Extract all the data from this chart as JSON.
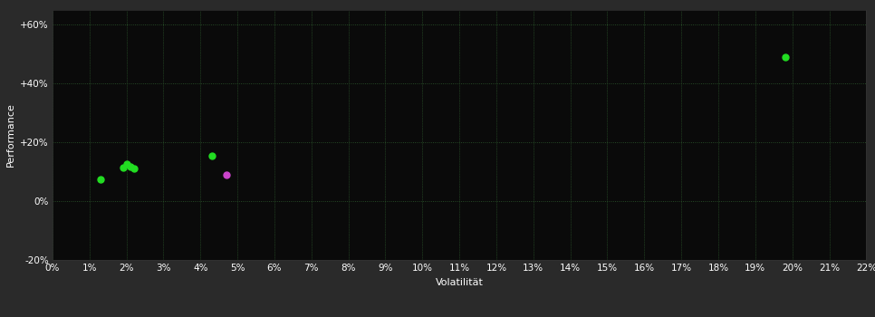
{
  "background_color": "#2a2a2a",
  "plot_bg_color": "#0a0a0a",
  "grid_color": "#2d5a2d",
  "grid_style": ":",
  "xlabel": "Volatilität",
  "ylabel": "Performance",
  "xlim": [
    0,
    0.22
  ],
  "ylim": [
    -0.2,
    0.65
  ],
  "ytick_vals": [
    -0.2,
    0.0,
    0.2,
    0.4,
    0.6
  ],
  "ytick_labels": [
    "-20%",
    "0%",
    "+20%",
    "+40%",
    "+60%"
  ],
  "xtick_vals": [
    0.0,
    0.01,
    0.02,
    0.03,
    0.04,
    0.05,
    0.06,
    0.07,
    0.08,
    0.09,
    0.1,
    0.11,
    0.12,
    0.13,
    0.14,
    0.15,
    0.16,
    0.17,
    0.18,
    0.19,
    0.2,
    0.21,
    0.22
  ],
  "xtick_labels": [
    "0%",
    "1%",
    "2%",
    "3%",
    "4%",
    "5%",
    "6%",
    "7%",
    "8%",
    "9%",
    "10%",
    "11%",
    "12%",
    "13%",
    "14%",
    "15%",
    "16%",
    "17%",
    "18%",
    "19%",
    "20%",
    "21%",
    "22%"
  ],
  "points_green": [
    [
      0.013,
      0.075
    ],
    [
      0.019,
      0.115
    ],
    [
      0.02,
      0.125
    ],
    [
      0.021,
      0.118
    ],
    [
      0.022,
      0.112
    ],
    [
      0.043,
      0.155
    ],
    [
      0.198,
      0.49
    ]
  ],
  "points_purple": [
    [
      0.047,
      0.09
    ]
  ],
  "point_color_green": "#22dd22",
  "point_color_purple": "#cc44cc",
  "point_size": 25,
  "tick_color": "#ffffff",
  "label_color": "#ffffff",
  "label_fontsize": 8,
  "tick_fontsize": 7.5
}
